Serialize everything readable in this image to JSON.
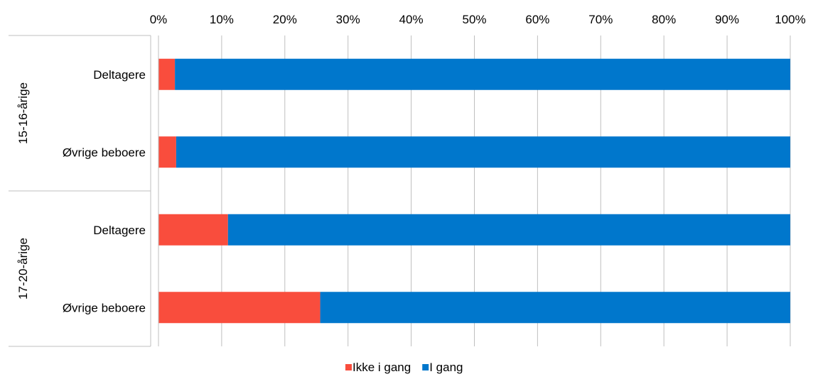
{
  "chart_data": {
    "type": "bar",
    "orientation": "horizontal",
    "stacked": "percent",
    "x_axis_position": "top",
    "xlim": [
      0,
      100
    ],
    "x_ticks": [
      "0%",
      "10%",
      "20%",
      "30%",
      "40%",
      "50%",
      "60%",
      "70%",
      "80%",
      "90%",
      "100%"
    ],
    "grid": true,
    "legend_position": "bottom",
    "groups": [
      {
        "label": "15-16-årige",
        "categories": [
          "Deltagere",
          "Øvrige beboere"
        ]
      },
      {
        "label": "17-20-årige",
        "categories": [
          "Deltagere",
          "Øvrige beboere"
        ]
      }
    ],
    "categories": [
      "Deltagere",
      "Øvrige beboere",
      "Deltagere",
      "Øvrige beboere"
    ],
    "series": [
      {
        "name": "Ikke i gang",
        "color": "#f94d3d",
        "values": [
          2.6,
          2.8,
          11.0,
          25.6
        ]
      },
      {
        "name": "I gang",
        "color": "#0077cc",
        "values": [
          97.4,
          97.2,
          89.0,
          74.4
        ]
      }
    ]
  }
}
